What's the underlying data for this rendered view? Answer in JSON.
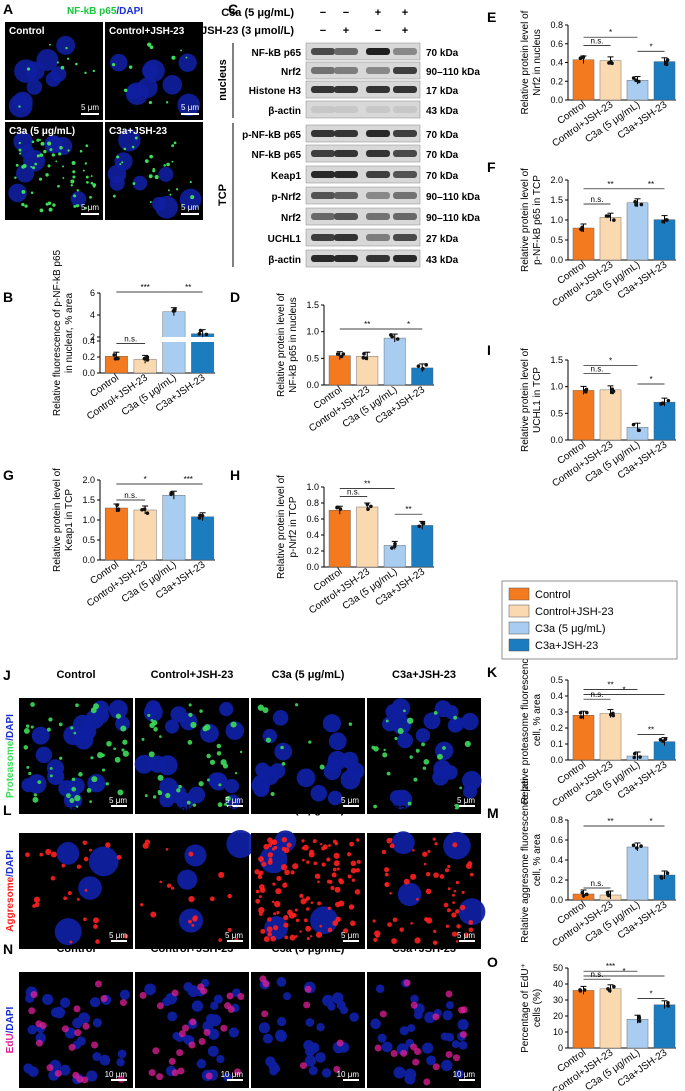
{
  "colors": {
    "control": "#f47a20",
    "control_jsh": "#fbd9b0",
    "c3a": "#a8cdf0",
    "c3a_jsh": "#1c7cc0",
    "dapi": "#0f1fa0",
    "green": "#3ddc5a",
    "red": "#ff2020",
    "magenta": "#e0209a"
  },
  "categories": [
    "Control",
    "Control+JSH-23",
    "C3a (5 μg/mL)",
    "C3a+JSH-23"
  ],
  "legend": [
    "Control",
    "Control+JSH-23",
    "C3a (5 μg/mL)",
    "C3a+JSH-23"
  ],
  "panelA": {
    "letter": "A",
    "title_green": "NF-kB p65",
    "title_blue": "/DAPI",
    "tiles": [
      "Control",
      "Control+JSH-23",
      "C3a (5 μg/mL)",
      "C3a+JSH-23"
    ],
    "scale": "5 μm"
  },
  "panelC": {
    "letter": "C",
    "treat1": "C3a (5 μg/mL)",
    "treat2": "JSH-23 (3 μmol/L)",
    "signs1": [
      "−",
      "−",
      "+",
      "+"
    ],
    "signs2": [
      "−",
      "+",
      "−",
      "+"
    ],
    "group_nucleus": "nucleus",
    "group_tcp": "TCP",
    "bands": [
      {
        "name": "NF-kB p65",
        "kda": "70 kDa"
      },
      {
        "name": "Nrf2",
        "kda": "90–110 kDa"
      },
      {
        "name": "Histone H3",
        "kda": "17 kDa"
      },
      {
        "name": "β-actin",
        "kda": "43 kDa"
      },
      {
        "name": "p-NF-kB p65",
        "kda": "70 kDa"
      },
      {
        "name": "NF-kB p65",
        "kda": "70 kDa"
      },
      {
        "name": "Keap1",
        "kda": "70 kDa"
      },
      {
        "name": "p-Nrf2",
        "kda": "90–110 kDa"
      },
      {
        "name": "Nrf2",
        "kda": "90–110 kDa"
      },
      {
        "name": "UCHL1",
        "kda": "27 kDa"
      },
      {
        "name": "β-actin",
        "kda": "43 kDa"
      }
    ]
  },
  "microscopy_rows": [
    {
      "letter": "J",
      "stain": "Proteasome",
      "dapi": "/DAPI",
      "stain_color": "green",
      "scale": "5 μm"
    },
    {
      "letter": "L",
      "stain": "Aggresome",
      "dapi": "/DAPI",
      "stain_color": "red",
      "scale": "5 μm"
    },
    {
      "letter": "N",
      "stain": "EdU",
      "dapi": "/DAPI",
      "stain_color": "magenta",
      "scale": "10 μm"
    }
  ],
  "chart_data": [
    {
      "letter": "B",
      "type": "bar",
      "ylabel": "Relative fluorescence of p-NF-kB p65 in nuclear, % area",
      "values": [
        0.21,
        0.17,
        4.3,
        2.3
      ],
      "axis": {
        "ticks": [
          "0.0",
          "0.2",
          "0.4",
          "2",
          "4",
          "6"
        ],
        "broken": true
      },
      "significance": [
        "n.s.",
        "***",
        "**"
      ]
    },
    {
      "letter": "D",
      "type": "bar",
      "ylabel": "Relative protein level of NF-kB p65 in nucleus",
      "values": [
        0.55,
        0.54,
        0.88,
        0.32
      ],
      "ylim": [
        0,
        1.5
      ],
      "axis": {
        "ticks": [
          "0.0",
          "0.5",
          "1.0",
          "1.5"
        ]
      },
      "significance": [
        "**",
        "*"
      ]
    },
    {
      "letter": "E",
      "type": "bar",
      "ylabel": "Relative protein level of Nrf2 in nucleus",
      "values": [
        0.43,
        0.42,
        0.21,
        0.41
      ],
      "ylim": [
        0,
        0.8
      ],
      "axis": {
        "ticks": [
          "0.0",
          "0.2",
          "0.4",
          "0.6",
          "0.8"
        ]
      },
      "significance": [
        "n.s.",
        "*",
        "*"
      ]
    },
    {
      "letter": "F",
      "type": "bar",
      "ylabel": "Relative protein level of p-NF-kB p65 in TCP",
      "values": [
        0.8,
        1.07,
        1.43,
        1.01
      ],
      "ylim": [
        0,
        2.0
      ],
      "axis": {
        "ticks": [
          "0.0",
          "0.5",
          "1.0",
          "1.5",
          "2.0"
        ]
      },
      "significance": [
        "n.s.",
        "**",
        "**"
      ]
    },
    {
      "letter": "G",
      "type": "bar",
      "ylabel": "Relative protein level of Keap1 in TCP",
      "values": [
        1.3,
        1.25,
        1.62,
        1.08
      ],
      "ylim": [
        0,
        2.0
      ],
      "axis": {
        "ticks": [
          "0.0",
          "0.5",
          "1.0",
          "1.5",
          "2.0"
        ]
      },
      "significance": [
        "n.s.",
        "*",
        "***"
      ]
    },
    {
      "letter": "H",
      "type": "bar",
      "ylabel": "Relative protein level of p-Nrf2 in TCP",
      "values": [
        0.71,
        0.75,
        0.27,
        0.52
      ],
      "ylim": [
        0,
        1.0
      ],
      "axis": {
        "ticks": [
          "0.0",
          "0.2",
          "0.4",
          "0.6",
          "0.8",
          "1.0"
        ]
      },
      "significance": [
        "n.s.",
        "**",
        "**"
      ]
    },
    {
      "letter": "I",
      "type": "bar",
      "ylabel": "Relative protein level of UCHL1 in TCP",
      "values": [
        0.93,
        0.94,
        0.24,
        0.71
      ],
      "ylim": [
        0,
        1.5
      ],
      "axis": {
        "ticks": [
          "0.0",
          "0.5",
          "1.0",
          "1.5"
        ]
      },
      "significance": [
        "n.s.",
        "*",
        "*"
      ]
    },
    {
      "letter": "K",
      "type": "bar",
      "ylabel": "Relative proteasome fluorescence per cell, % area",
      "values": [
        0.28,
        0.29,
        0.025,
        0.115
      ],
      "ylim": [
        0,
        0.5
      ],
      "axis": {
        "ticks": [
          "0.0",
          "0.1",
          "0.2",
          "0.3",
          "0.4",
          "0.5"
        ]
      },
      "significance": [
        "n.s.",
        "**",
        "*",
        "**"
      ]
    },
    {
      "letter": "M",
      "type": "bar",
      "ylabel": "Relative aggresome fluorescence per cell, % area",
      "values": [
        0.06,
        0.05,
        0.53,
        0.25
      ],
      "ylim": [
        0,
        0.8
      ],
      "axis": {
        "ticks": [
          "0.0",
          "0.2",
          "0.4",
          "0.6",
          "0.8"
        ]
      },
      "significance": [
        "n.s.",
        "**",
        "*"
      ]
    },
    {
      "letter": "O",
      "type": "bar",
      "ylabel": "Percentage of EdU⁺ cells (%)",
      "values": [
        36,
        37,
        18,
        27
      ],
      "ylim": [
        0,
        50
      ],
      "axis": {
        "ticks": [
          "0",
          "10",
          "20",
          "30",
          "40",
          "50"
        ]
      },
      "significance": [
        "n.s.",
        "***",
        "*",
        "*"
      ]
    }
  ]
}
